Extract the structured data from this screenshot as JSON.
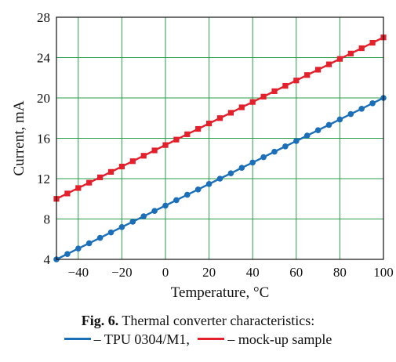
{
  "chart_data": {
    "type": "line",
    "xlabel": "Temperature, °C",
    "ylabel": "Current, mA",
    "xlim": [
      -50,
      100
    ],
    "ylim": [
      4,
      28
    ],
    "xticks": [
      -40,
      -20,
      0,
      20,
      40,
      60,
      80,
      100
    ],
    "xtick_labels": [
      "−40",
      "−20",
      "0",
      "20",
      "40",
      "60",
      "80",
      "100"
    ],
    "yticks": [
      4,
      8,
      12,
      16,
      20,
      24,
      28
    ],
    "grid": true,
    "legend_placement": "below",
    "x": [
      -50,
      -45,
      -40,
      -35,
      -30,
      -25,
      -20,
      -15,
      -10,
      -5,
      0,
      5,
      10,
      15,
      20,
      25,
      30,
      35,
      40,
      45,
      50,
      55,
      60,
      65,
      70,
      75,
      80,
      85,
      90,
      95,
      100
    ],
    "series": [
      {
        "name": "– TPU 0304/M1,",
        "color": "#1b6fb8",
        "marker": "circle",
        "values": [
          4.0,
          4.53,
          5.07,
          5.6,
          6.13,
          6.67,
          7.2,
          7.73,
          8.27,
          8.8,
          9.33,
          9.87,
          10.4,
          10.93,
          11.47,
          12.0,
          12.53,
          13.07,
          13.6,
          14.13,
          14.67,
          15.2,
          15.73,
          16.27,
          16.8,
          17.33,
          17.87,
          18.4,
          18.93,
          19.47,
          20.0
        ]
      },
      {
        "name": "– mock-up sample",
        "color": "#e3202b",
        "marker": "square",
        "values": [
          10.0,
          10.53,
          11.07,
          11.6,
          12.13,
          12.67,
          13.2,
          13.73,
          14.27,
          14.8,
          15.33,
          15.87,
          16.4,
          16.93,
          17.47,
          18.0,
          18.53,
          19.07,
          19.6,
          20.13,
          20.67,
          21.2,
          21.73,
          22.27,
          22.8,
          23.33,
          23.87,
          24.4,
          24.93,
          25.47,
          26.0
        ]
      }
    ]
  },
  "caption": {
    "number": "Fig. 6.",
    "text": " Thermal converter characteristics:"
  },
  "colors": {
    "grid": "#2a9d4b"
  }
}
